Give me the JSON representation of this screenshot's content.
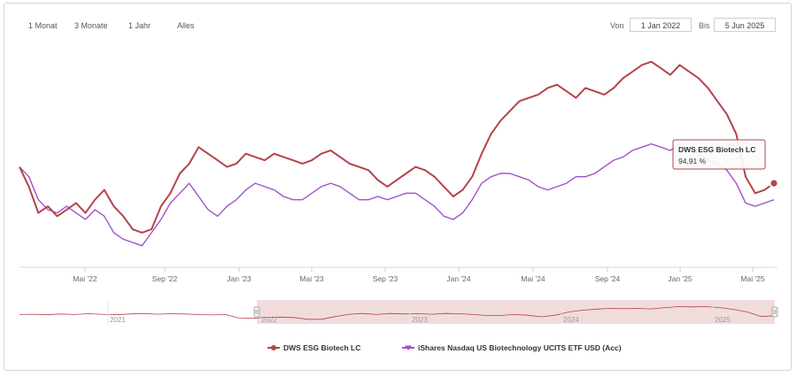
{
  "range_selector": {
    "buttons": [
      "1 Monat",
      "3 Monate",
      "1 Jahr",
      "Alles"
    ],
    "from_label": "Von",
    "from_value": "1 Jan 2022",
    "to_label": "Bis",
    "to_value": "5 Jun 2025"
  },
  "colors": {
    "dws": "#b5434a",
    "ishares": "#a152c9",
    "navigator_mask": "#f1dcdc"
  },
  "tooltip": {
    "title": "DWS ESG Biotech LC",
    "value": "94,91 %"
  },
  "navigator": {
    "year_labels": [
      "2021",
      "2022",
      "2023",
      "2024",
      "2025"
    ]
  },
  "chart_data": {
    "type": "line",
    "x_ticks": [
      "Mai '22",
      "Sep '22",
      "Jan '23",
      "Mai '23",
      "Sep '23",
      "Jan '24",
      "Mai '24",
      "Sep '24",
      "Jan '25",
      "Mai '25"
    ],
    "y_range": [
      70,
      140
    ],
    "grid": false,
    "legend_position": "bottom",
    "series": [
      {
        "name": "DWS ESG Biotech LC",
        "values": [
          100,
          94,
          86,
          88,
          85,
          87,
          89,
          86,
          90,
          93,
          88,
          85,
          81,
          80,
          81,
          88,
          92,
          98,
          101,
          106,
          104,
          102,
          100,
          101,
          104,
          103,
          102,
          104,
          103,
          102,
          101,
          102,
          104,
          105,
          103,
          101,
          100,
          99,
          96,
          94,
          96,
          98,
          100,
          99,
          97,
          94,
          91,
          93,
          97,
          104,
          110,
          114,
          117,
          120,
          121,
          122,
          124,
          125,
          123,
          121,
          124,
          123,
          122,
          124,
          127,
          129,
          131,
          132,
          130,
          128,
          131,
          129,
          127,
          124,
          120,
          116,
          110,
          97,
          92,
          93,
          95
        ]
      },
      {
        "name": "iShares Nasdaq US Biotechnology UCITS ETF USD (Acc)",
        "values": [
          100,
          97,
          90,
          87,
          86,
          88,
          86,
          84,
          87,
          85,
          80,
          78,
          77,
          76,
          80,
          84,
          89,
          92,
          95,
          91,
          87,
          85,
          88,
          90,
          93,
          95,
          94,
          93,
          91,
          90,
          90,
          92,
          94,
          95,
          94,
          92,
          90,
          90,
          91,
          90,
          91,
          92,
          92,
          90,
          88,
          85,
          84,
          86,
          90,
          95,
          97,
          98,
          98,
          97,
          96,
          94,
          93,
          94,
          95,
          97,
          97,
          98,
          100,
          102,
          103,
          105,
          106,
          107,
          106,
          105,
          107,
          105,
          104,
          102,
          101,
          99,
          95,
          89,
          88,
          89,
          90
        ]
      }
    ]
  }
}
